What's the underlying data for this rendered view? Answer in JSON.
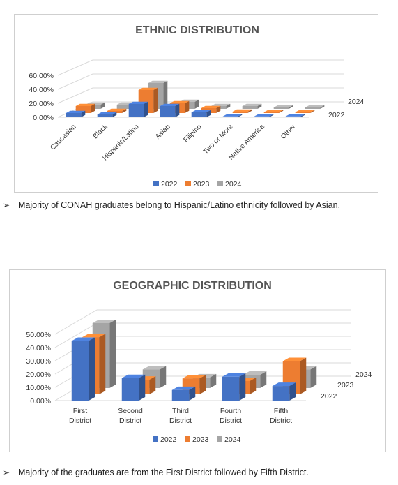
{
  "chart_data": [
    {
      "type": "bar",
      "title": "ETHNIC DISTRIBUTION",
      "categories": [
        "Caucasian",
        "Black",
        "Hispanic/Latino",
        "Asian",
        "Filipino",
        "Two or More",
        "Native America",
        "Other"
      ],
      "series": [
        {
          "name": "2022",
          "values": [
            6,
            4,
            19,
            16,
            7,
            0.5,
            0.3,
            1
          ]
        },
        {
          "name": "2023",
          "values": [
            10,
            3,
            33,
            14,
            7,
            2,
            1,
            1
          ]
        },
        {
          "name": "2024",
          "values": [
            6,
            6,
            37,
            10,
            4,
            4,
            2,
            2
          ]
        }
      ],
      "yticks": [
        "0.00%",
        "20.00%",
        "40.00%",
        "60.00%"
      ],
      "ylim": [
        0,
        60
      ],
      "depth_labels": [
        "2022",
        "2024"
      ],
      "legend": "bottom",
      "colors": {
        "2022": "#4472C4",
        "2023": "#ED7D31",
        "2024": "#A5A5A5"
      }
    },
    {
      "type": "bar",
      "title": "GEOGRAPHIC DISTRIBUTION",
      "categories": [
        "First District",
        "Second District",
        "Third District",
        "Fourth District",
        "Fifth District"
      ],
      "series": [
        {
          "name": "2022",
          "values": [
            45,
            17,
            8,
            18,
            11
          ]
        },
        {
          "name": "2023",
          "values": [
            43,
            11,
            12,
            10,
            25
          ]
        },
        {
          "name": "2024",
          "values": [
            49,
            14,
            8,
            10,
            14
          ]
        }
      ],
      "yticks": [
        "0.00%",
        "10.00%",
        "20.00%",
        "30.00%",
        "40.00%",
        "50.00%"
      ],
      "ylim": [
        0,
        50
      ],
      "depth_labels": [
        "2022",
        "2023",
        "2024"
      ],
      "legend": "bottom",
      "colors": {
        "2022": "#4472C4",
        "2023": "#ED7D31",
        "2024": "#A5A5A5"
      }
    }
  ],
  "notes": {
    "ethnic": "Majority of CONAH graduates belong to Hispanic/Latino ethnicity followed by Asian.",
    "geographic": "Majority of the graduates are from the First District followed by Fifth District.",
    "arrow": "➢"
  }
}
